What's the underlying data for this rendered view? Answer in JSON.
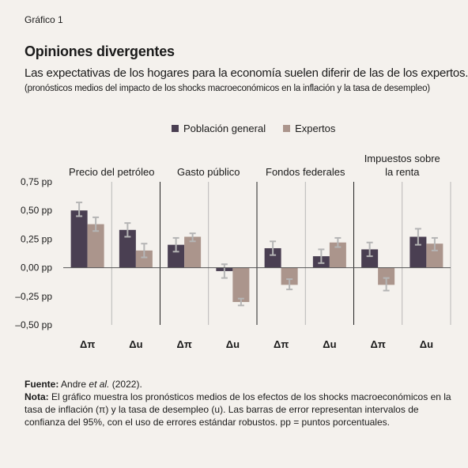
{
  "figure_label": "Gráfico 1",
  "title": "Opiniones divergentes",
  "subtitle": "Las expectativas de los hogares para la economía suelen diferir de las de los expertos.",
  "subnote": "(pronósticos medios del impacto de los shocks macroeconómicos en la inflación y la tasa de desempleo)",
  "colors": {
    "general": "#4a3f52",
    "expertos": "#ab958c",
    "error": "#b5b5b5",
    "background": "#f4f1ed"
  },
  "chart_data": {
    "type": "bar",
    "legend_position": "top-center",
    "grid": false,
    "ylim": [
      -0.5,
      0.75
    ],
    "yticks": [
      0.75,
      0.5,
      0.25,
      0.0,
      -0.25,
      -0.5
    ],
    "ytick_labels": [
      "0,75 pp",
      "0,50 pp",
      "0,25 pp",
      "0,00 pp",
      "–0,25 pp",
      "–0,50 pp"
    ],
    "groups": [
      {
        "label": "Precio del petróleo",
        "categories": [
          "Δπ",
          "Δu"
        ]
      },
      {
        "label": "Gasto público",
        "categories": [
          "Δπ",
          "Δu"
        ]
      },
      {
        "label": "Fondos federales",
        "categories": [
          "Δπ",
          "Δu"
        ]
      },
      {
        "label": "Impuestos sobre la renta",
        "label_lines": [
          "Impuestos sobre",
          "la renta"
        ],
        "categories": [
          "Δπ",
          "Δu"
        ]
      }
    ],
    "series": [
      {
        "name": "Población general",
        "values": [
          0.5,
          0.33,
          0.2,
          -0.03,
          0.17,
          0.1,
          0.16,
          0.27
        ],
        "err_low": [
          0.45,
          0.27,
          0.14,
          -0.09,
          0.11,
          0.04,
          0.1,
          0.2
        ],
        "err_high": [
          0.57,
          0.39,
          0.26,
          0.03,
          0.23,
          0.16,
          0.22,
          0.34
        ]
      },
      {
        "name": "Expertos",
        "values": [
          0.38,
          0.15,
          0.27,
          -0.3,
          -0.15,
          0.22,
          -0.15,
          0.21
        ],
        "err_low": [
          0.32,
          0.09,
          0.23,
          -0.33,
          -0.19,
          0.18,
          -0.2,
          0.15
        ],
        "err_high": [
          0.44,
          0.21,
          0.3,
          -0.27,
          -0.1,
          0.26,
          -0.09,
          0.26
        ]
      }
    ]
  },
  "footer": {
    "source_label": "Fuente:",
    "source_text_a": "Andre",
    "source_text_em": "et al.",
    "source_text_b": "(2022).",
    "note_label": "Nota:",
    "note_text": "El gráfico muestra los pronósticos medios de los efectos de los shocks macroeconó­micos en la tasa de inflación (π) y la tasa de desempleo (u). Las barras de error representan intervalos de confianza del 95%, con el uso de errores estándar robustos. pp = puntos porcentuales."
  }
}
